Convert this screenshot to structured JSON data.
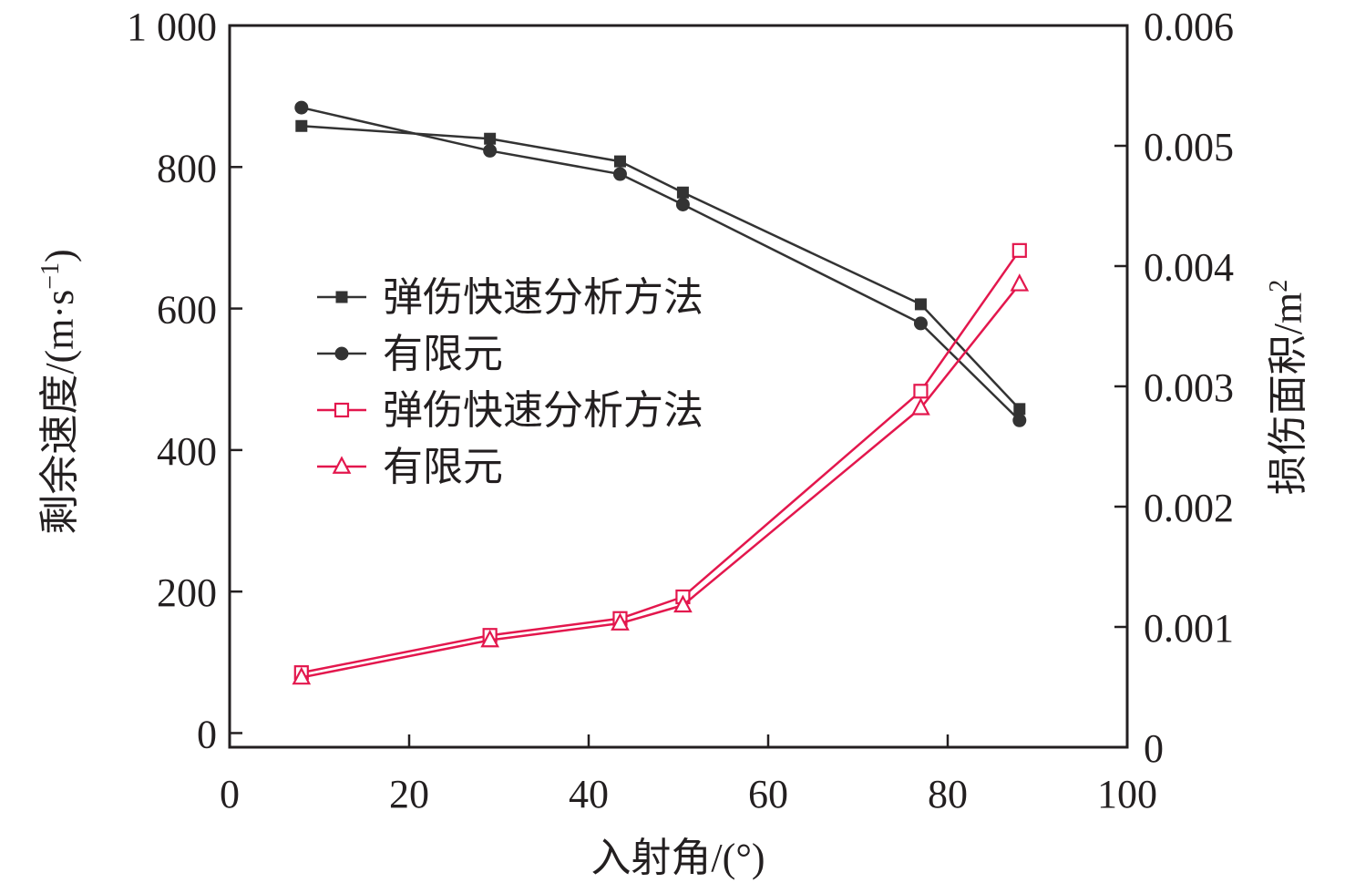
{
  "chart_data": {
    "type": "line",
    "xlabel": "入射角/(°)",
    "x_ticks": [
      "0",
      "20",
      "40",
      "60",
      "80",
      "100"
    ],
    "xlim": [
      0,
      100
    ],
    "y_left": {
      "label": "剩余速度/(m·s",
      "label_sup": "−1",
      "label_close": ")",
      "ticks": [
        "0",
        "200",
        "400",
        "600",
        "800",
        "1 000"
      ],
      "lim": [
        -20,
        1000
      ]
    },
    "y_right": {
      "label": "损伤面积/m",
      "label_sup": "2",
      "ticks": [
        "0",
        "0.001",
        "0.002",
        "0.003",
        "0.004",
        "0.005",
        "0.006"
      ],
      "lim": [
        0,
        0.006
      ]
    },
    "grid": false,
    "legend_position": "center-left",
    "colors": {
      "black": "#333333",
      "red": "#e3174d",
      "frame": "#231f20"
    },
    "series": [
      {
        "name": "弹伤快速分析方法",
        "axis": "left",
        "color": "#333333",
        "marker": "square-filled",
        "x": [
          8,
          29,
          43.5,
          50.5,
          77,
          88
        ],
        "y": [
          858,
          840,
          808,
          764,
          606,
          458
        ]
      },
      {
        "name": "有限元",
        "axis": "left",
        "color": "#333333",
        "marker": "circle-filled",
        "x": [
          8,
          29,
          43.5,
          50.5,
          77,
          88
        ],
        "y": [
          884,
          823,
          790,
          747,
          579,
          442
        ]
      },
      {
        "name": "弹伤快速分析方法",
        "axis": "right",
        "color": "#e3174d",
        "marker": "square-open",
        "x": [
          8,
          29,
          43.5,
          50.5,
          77,
          88
        ],
        "y": [
          0.00062,
          0.00093,
          0.00107,
          0.00125,
          0.00296,
          0.00413
        ]
      },
      {
        "name": "有限元",
        "axis": "right",
        "color": "#e3174d",
        "marker": "triangle-open",
        "x": [
          8,
          29,
          43.5,
          50.5,
          77,
          88
        ],
        "y": [
          0.00058,
          0.00089,
          0.00103,
          0.00118,
          0.00282,
          0.00385
        ]
      }
    ]
  }
}
